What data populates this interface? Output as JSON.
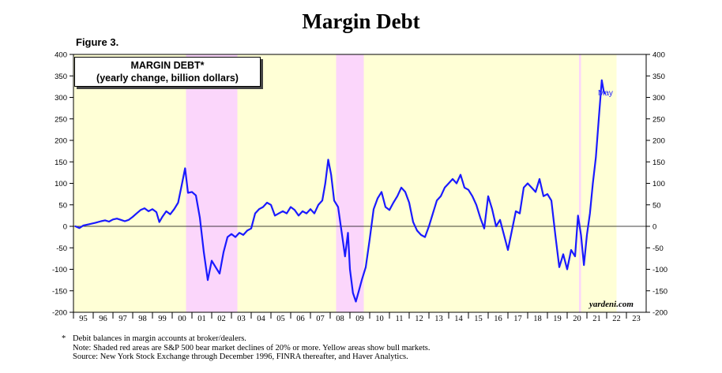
{
  "title": "Margin Debt",
  "figure_label": "Figure 3.",
  "legend": {
    "line1": "MARGIN DEBT*",
    "line2": "(yearly change, billion dollars)"
  },
  "brand": "yardeni.com",
  "annotation_end": "May",
  "footnote": {
    "asterisk": "*",
    "line1": "Debit balances in margin accounts at broker/dealers.",
    "line2": "Note: Shaded red areas are S&P 500 bear market declines of 20% or more. Yellow areas show bull markets.",
    "line3": "Source: New York Stock Exchange through December 1996, FINRA thereafter, and Haver Analytics."
  },
  "colors": {
    "line": "#1a1aff",
    "bull": "#ffffd6",
    "bear": "#fbd6fb"
  },
  "chart_data": {
    "type": "line",
    "title": "MARGIN DEBT* (yearly change, billion dollars)",
    "xlabel": "",
    "ylabel": "",
    "xlim": [
      1994.5,
      2023.5
    ],
    "ylim": [
      -200,
      400
    ],
    "yticks": [
      -200,
      -150,
      -100,
      -50,
      0,
      50,
      100,
      150,
      200,
      250,
      300,
      350,
      400
    ],
    "xtick_labels": [
      "95",
      "96",
      "97",
      "98",
      "99",
      "00",
      "01",
      "02",
      "03",
      "04",
      "05",
      "06",
      "07",
      "08",
      "09",
      "10",
      "11",
      "12",
      "13",
      "14",
      "15",
      "16",
      "17",
      "18",
      "19",
      "20",
      "21",
      "22",
      "23"
    ],
    "grid": false,
    "zero_line": true,
    "bull_markets": [
      [
        1994.5,
        2000.2
      ],
      [
        2002.8,
        2007.8
      ],
      [
        2009.2,
        2020.1
      ],
      [
        2020.2,
        2022.0
      ]
    ],
    "bear_markets": [
      [
        2000.2,
        2002.8
      ],
      [
        2007.8,
        2009.2
      ],
      [
        2020.1,
        2020.2
      ]
    ],
    "series": [
      {
        "points": [
          [
            1994.6,
            0
          ],
          [
            1994.8,
            -4
          ],
          [
            1995.0,
            2
          ],
          [
            1995.3,
            5
          ],
          [
            1995.6,
            8
          ],
          [
            1995.9,
            12
          ],
          [
            1996.1,
            14
          ],
          [
            1996.3,
            11
          ],
          [
            1996.5,
            16
          ],
          [
            1996.7,
            18
          ],
          [
            1996.9,
            15
          ],
          [
            1997.1,
            12
          ],
          [
            1997.3,
            15
          ],
          [
            1997.5,
            22
          ],
          [
            1997.7,
            30
          ],
          [
            1997.9,
            38
          ],
          [
            1998.1,
            42
          ],
          [
            1998.3,
            35
          ],
          [
            1998.5,
            40
          ],
          [
            1998.7,
            33
          ],
          [
            1998.85,
            10
          ],
          [
            1999.0,
            22
          ],
          [
            1999.2,
            35
          ],
          [
            1999.4,
            28
          ],
          [
            1999.6,
            40
          ],
          [
            1999.8,
            55
          ],
          [
            2000.0,
            100
          ],
          [
            2000.15,
            135
          ],
          [
            2000.3,
            78
          ],
          [
            2000.5,
            80
          ],
          [
            2000.7,
            72
          ],
          [
            2000.9,
            20
          ],
          [
            2001.1,
            -60
          ],
          [
            2001.3,
            -125
          ],
          [
            2001.5,
            -80
          ],
          [
            2001.7,
            -95
          ],
          [
            2001.9,
            -110
          ],
          [
            2002.1,
            -60
          ],
          [
            2002.3,
            -25
          ],
          [
            2002.5,
            -18
          ],
          [
            2002.7,
            -25
          ],
          [
            2002.9,
            -15
          ],
          [
            2003.1,
            -20
          ],
          [
            2003.3,
            -10
          ],
          [
            2003.5,
            -5
          ],
          [
            2003.7,
            30
          ],
          [
            2003.9,
            40
          ],
          [
            2004.1,
            45
          ],
          [
            2004.3,
            55
          ],
          [
            2004.5,
            50
          ],
          [
            2004.7,
            25
          ],
          [
            2004.9,
            30
          ],
          [
            2005.1,
            35
          ],
          [
            2005.3,
            30
          ],
          [
            2005.5,
            45
          ],
          [
            2005.7,
            38
          ],
          [
            2005.9,
            25
          ],
          [
            2006.1,
            35
          ],
          [
            2006.3,
            30
          ],
          [
            2006.5,
            40
          ],
          [
            2006.7,
            30
          ],
          [
            2006.9,
            50
          ],
          [
            2007.1,
            60
          ],
          [
            2007.25,
            100
          ],
          [
            2007.4,
            155
          ],
          [
            2007.55,
            120
          ],
          [
            2007.7,
            60
          ],
          [
            2007.9,
            45
          ],
          [
            2008.1,
            -20
          ],
          [
            2008.25,
            -70
          ],
          [
            2008.4,
            -15
          ],
          [
            2008.5,
            -100
          ],
          [
            2008.65,
            -155
          ],
          [
            2008.8,
            -175
          ],
          [
            2008.95,
            -150
          ],
          [
            2009.1,
            -125
          ],
          [
            2009.3,
            -95
          ],
          [
            2009.5,
            -30
          ],
          [
            2009.7,
            40
          ],
          [
            2009.9,
            65
          ],
          [
            2010.1,
            80
          ],
          [
            2010.3,
            45
          ],
          [
            2010.5,
            38
          ],
          [
            2010.7,
            55
          ],
          [
            2010.9,
            70
          ],
          [
            2011.1,
            90
          ],
          [
            2011.3,
            80
          ],
          [
            2011.5,
            55
          ],
          [
            2011.7,
            10
          ],
          [
            2011.9,
            -10
          ],
          [
            2012.1,
            -20
          ],
          [
            2012.3,
            -25
          ],
          [
            2012.5,
            0
          ],
          [
            2012.7,
            30
          ],
          [
            2012.9,
            60
          ],
          [
            2013.1,
            70
          ],
          [
            2013.3,
            90
          ],
          [
            2013.5,
            100
          ],
          [
            2013.7,
            110
          ],
          [
            2013.9,
            100
          ],
          [
            2014.1,
            120
          ],
          [
            2014.3,
            90
          ],
          [
            2014.5,
            85
          ],
          [
            2014.7,
            70
          ],
          [
            2014.9,
            50
          ],
          [
            2015.1,
            20
          ],
          [
            2015.3,
            -5
          ],
          [
            2015.5,
            70
          ],
          [
            2015.7,
            40
          ],
          [
            2015.9,
            0
          ],
          [
            2016.1,
            15
          ],
          [
            2016.3,
            -20
          ],
          [
            2016.5,
            -55
          ],
          [
            2016.7,
            -10
          ],
          [
            2016.9,
            35
          ],
          [
            2017.1,
            30
          ],
          [
            2017.3,
            90
          ],
          [
            2017.5,
            100
          ],
          [
            2017.7,
            90
          ],
          [
            2017.9,
            80
          ],
          [
            2018.1,
            110
          ],
          [
            2018.3,
            70
          ],
          [
            2018.5,
            75
          ],
          [
            2018.7,
            60
          ],
          [
            2018.9,
            -20
          ],
          [
            2019.1,
            -95
          ],
          [
            2019.3,
            -65
          ],
          [
            2019.5,
            -100
          ],
          [
            2019.7,
            -55
          ],
          [
            2019.9,
            -70
          ],
          [
            2020.05,
            25
          ],
          [
            2020.2,
            -20
          ],
          [
            2020.35,
            -90
          ],
          [
            2020.5,
            -20
          ],
          [
            2020.65,
            30
          ],
          [
            2020.8,
            100
          ],
          [
            2020.95,
            160
          ],
          [
            2021.1,
            250
          ],
          [
            2021.25,
            340
          ],
          [
            2021.35,
            315
          ],
          [
            2021.4,
            310
          ]
        ]
      }
    ]
  }
}
